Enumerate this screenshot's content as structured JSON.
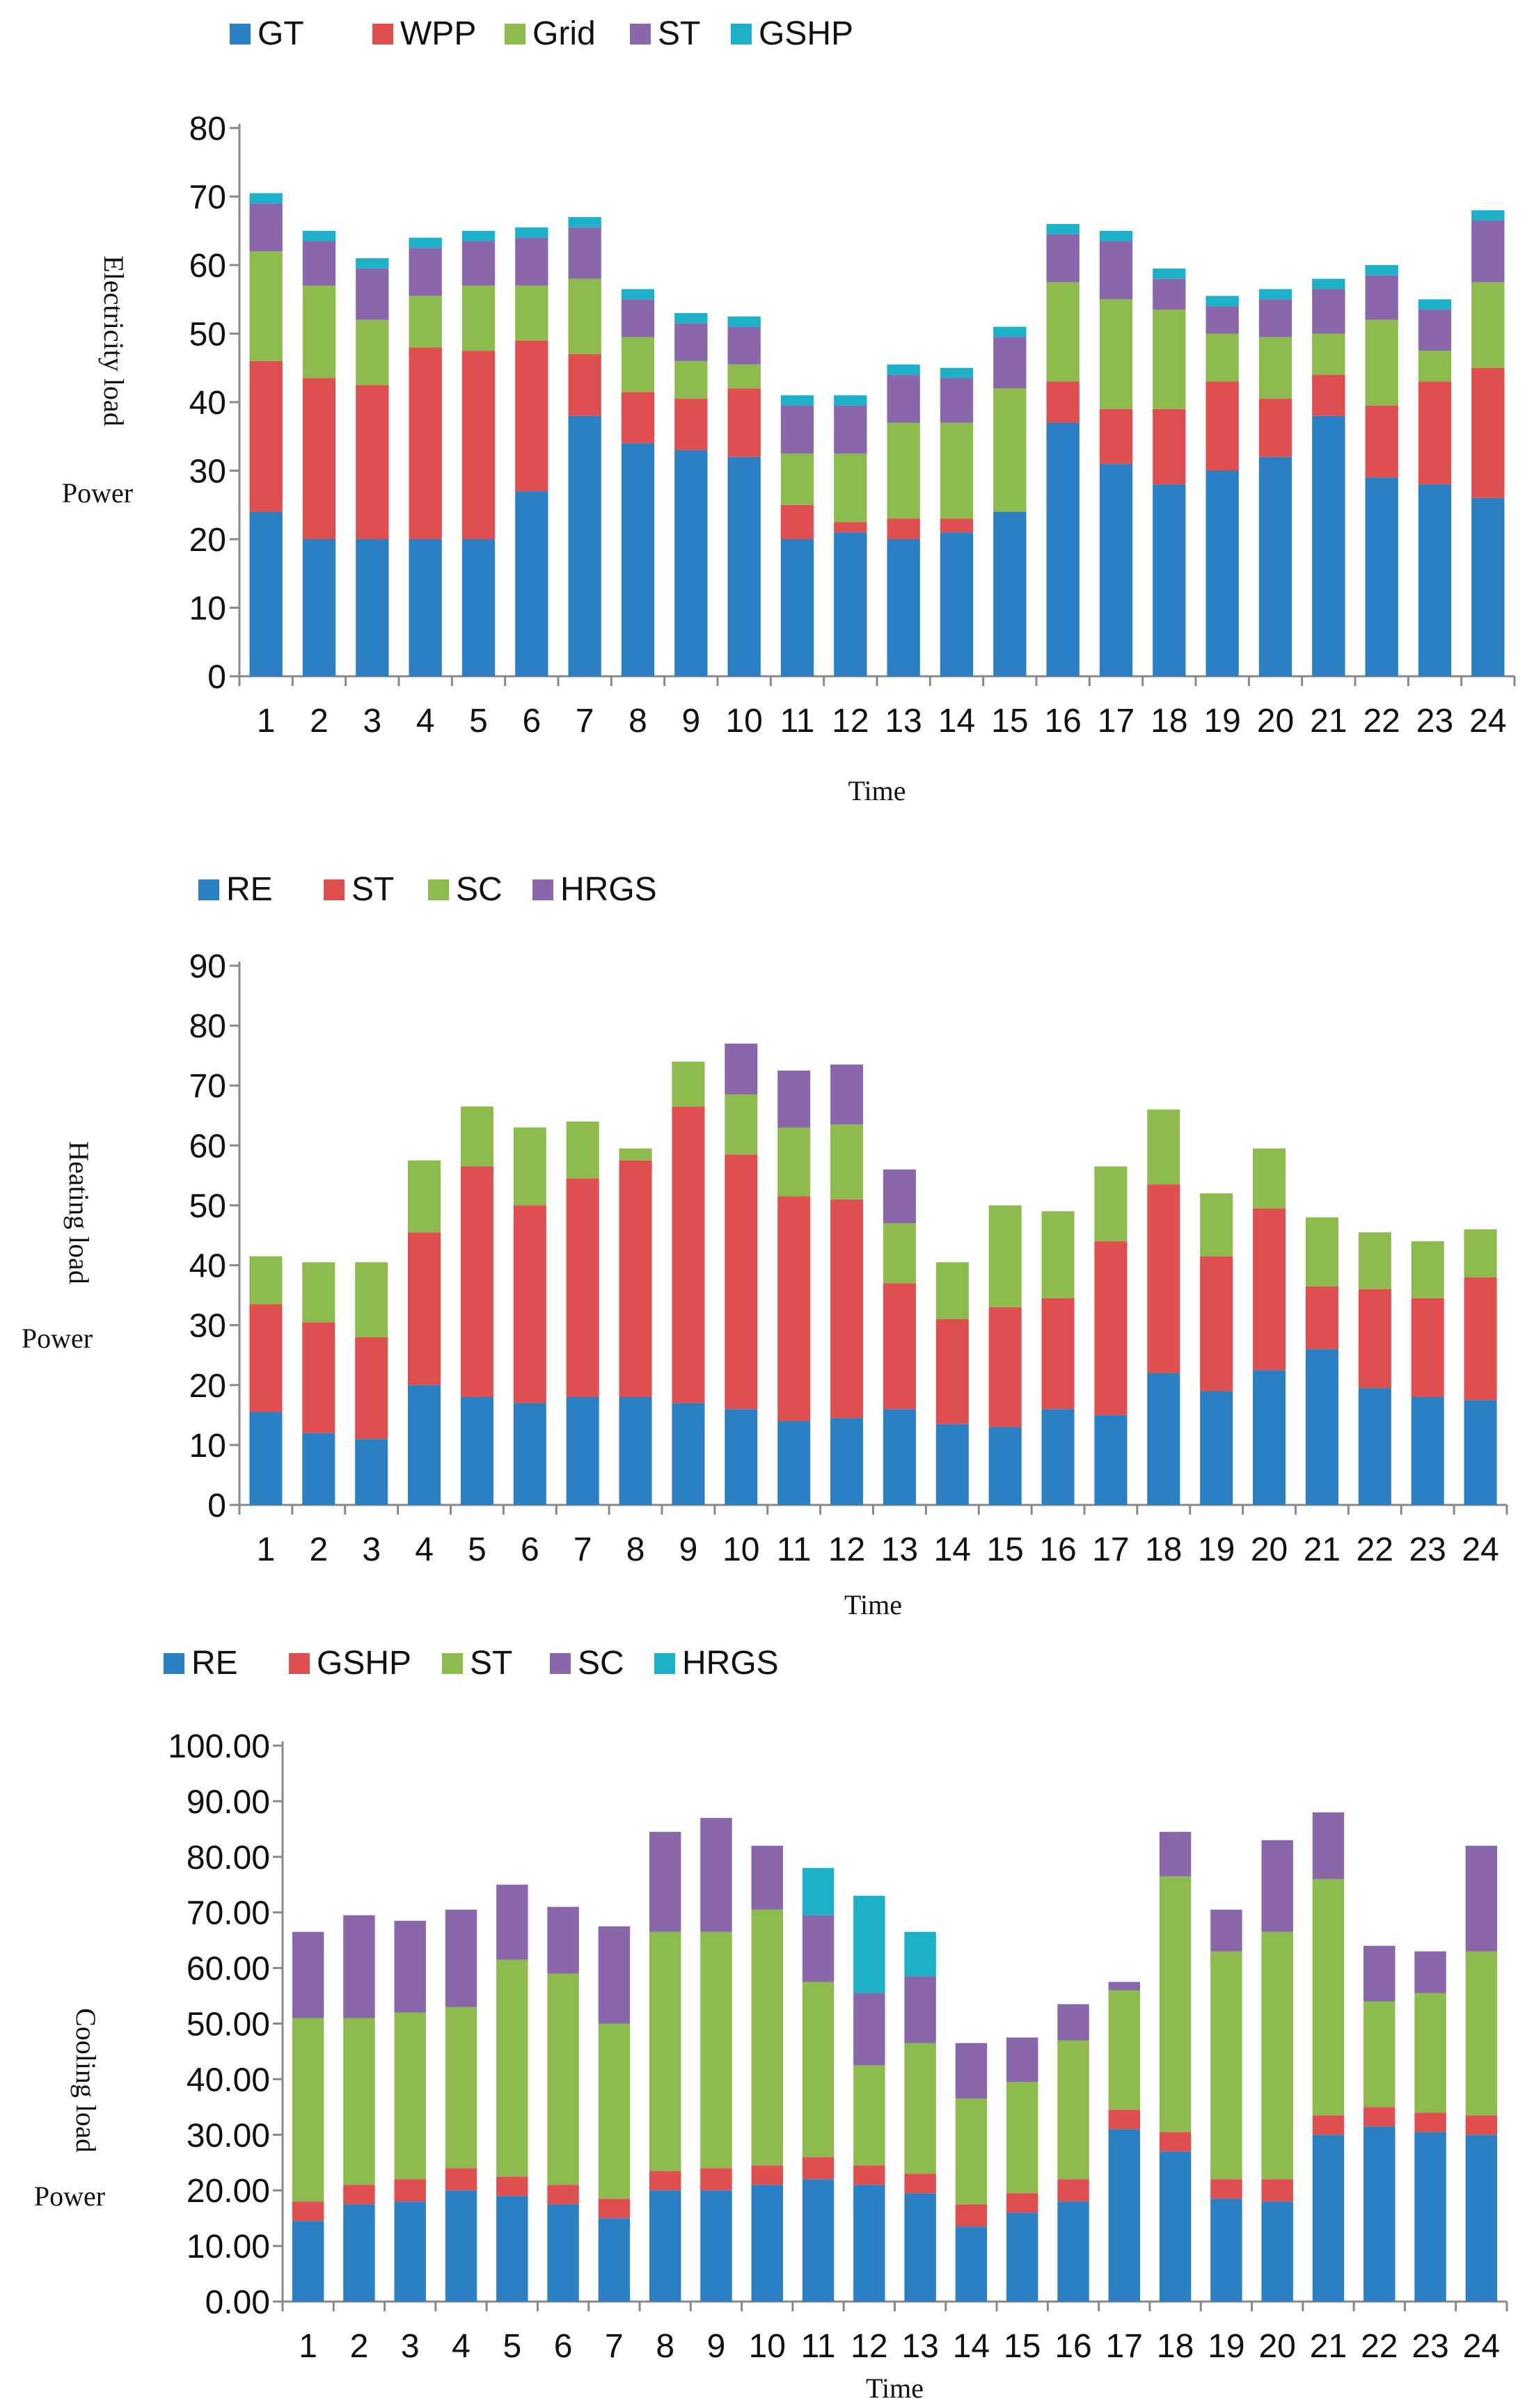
{
  "colors": {
    "blue": "#2a80c2",
    "red": "#e04f4f",
    "green": "#8dbb4e",
    "purple": "#8a67aa",
    "cyan": "#1cb1c9"
  },
  "chart_data": [
    {
      "type": "bar",
      "stacked": true,
      "title": "",
      "ylabel": "Electricity load",
      "ylabel2": "Power",
      "xlabel": "Time",
      "ylim": [
        0,
        80
      ],
      "yticks": [
        "0",
        "10",
        "20",
        "30",
        "40",
        "50",
        "60",
        "70",
        "80"
      ],
      "categories": [
        "1",
        "2",
        "3",
        "4",
        "5",
        "6",
        "7",
        "8",
        "9",
        "10",
        "11",
        "12",
        "13",
        "14",
        "15",
        "16",
        "17",
        "18",
        "19",
        "20",
        "21",
        "22",
        "23",
        "24"
      ],
      "legend_position": "top-left",
      "series": [
        {
          "name": "GT",
          "color": "#2a80c2",
          "values": [
            24,
            20,
            20,
            20,
            20,
            27,
            38,
            34,
            33,
            32,
            20,
            21,
            20,
            21,
            24,
            37,
            31,
            28,
            30,
            32,
            38,
            29,
            28,
            26
          ]
        },
        {
          "name": "WPP",
          "color": "#e04f4f",
          "values": [
            22,
            23.5,
            22.5,
            28,
            27.5,
            22,
            9,
            7.5,
            7.5,
            10,
            5,
            1.5,
            3,
            2,
            0,
            6,
            8,
            11,
            13,
            8.5,
            6,
            10.5,
            15,
            19
          ]
        },
        {
          "name": "Grid",
          "color": "#8dbb4e",
          "values": [
            16,
            13.5,
            9.5,
            7.5,
            9.5,
            8,
            11,
            8,
            5.5,
            3.5,
            7.5,
            10,
            14,
            14,
            18,
            14.5,
            16,
            14.5,
            7,
            9,
            6,
            12.5,
            4.5,
            12.5
          ]
        },
        {
          "name": "ST",
          "color": "#8a67aa",
          "values": [
            7,
            6.5,
            7.5,
            7,
            6.5,
            7,
            7.5,
            5.5,
            5.5,
            5.5,
            7,
            7,
            7,
            6.5,
            7.5,
            7,
            8.5,
            4.5,
            4,
            5.5,
            6.5,
            6.5,
            6,
            9
          ]
        },
        {
          "name": "GSHP",
          "color": "#1cb1c9",
          "values": [
            1.5,
            1.5,
            1.5,
            1.5,
            1.5,
            1.5,
            1.5,
            1.5,
            1.5,
            1.5,
            1.5,
            1.5,
            1.5,
            1.5,
            1.5,
            1.5,
            1.5,
            1.5,
            1.5,
            1.5,
            1.5,
            1.5,
            1.5,
            1.5
          ]
        }
      ]
    },
    {
      "type": "bar",
      "stacked": true,
      "title": "",
      "ylabel": "Heating load",
      "ylabel2": "Power",
      "xlabel": "Time",
      "ylim": [
        0,
        90
      ],
      "yticks": [
        "0",
        "10",
        "20",
        "30",
        "40",
        "50",
        "60",
        "70",
        "80",
        "90"
      ],
      "categories": [
        "1",
        "2",
        "3",
        "4",
        "5",
        "6",
        "7",
        "8",
        "9",
        "10",
        "11",
        "12",
        "13",
        "14",
        "15",
        "16",
        "17",
        "18",
        "19",
        "20",
        "21",
        "22",
        "23",
        "24"
      ],
      "legend_position": "top-left",
      "series": [
        {
          "name": "RE",
          "color": "#2a80c2",
          "values": [
            15.5,
            12,
            11,
            20,
            18,
            17,
            18,
            18,
            17,
            16,
            14,
            14.5,
            16,
            13.5,
            13,
            16,
            15,
            22,
            19,
            22.5,
            26,
            19.5,
            18,
            17.5
          ]
        },
        {
          "name": "ST",
          "color": "#e04f4f",
          "values": [
            18,
            18.5,
            17,
            25.5,
            38.5,
            33,
            36.5,
            39.5,
            49.5,
            42.5,
            37.5,
            36.5,
            21,
            17.5,
            20,
            18.5,
            29,
            31.5,
            22.5,
            27,
            10.5,
            16.5,
            16.5,
            20.5
          ]
        },
        {
          "name": "SC",
          "color": "#8dbb4e",
          "values": [
            8,
            10,
            12.5,
            12,
            10,
            13,
            9.5,
            2,
            7.5,
            10,
            11.5,
            12.5,
            10,
            9.5,
            17,
            14.5,
            12.5,
            12.5,
            10.5,
            10,
            11.5,
            9.5,
            9.5,
            8
          ]
        },
        {
          "name": "HRGS",
          "color": "#8a67aa",
          "values": [
            0,
            0,
            0,
            0,
            0,
            0,
            0,
            0,
            0,
            8.5,
            9.5,
            10,
            9,
            0,
            0,
            0,
            0,
            0,
            0,
            0,
            0,
            0,
            0,
            0
          ]
        }
      ]
    },
    {
      "type": "bar",
      "stacked": true,
      "title": "",
      "ylabel": "Cooling load",
      "ylabel2": "Power",
      "xlabel": "Time",
      "ylim": [
        0,
        100
      ],
      "yticks": [
        "0.00",
        "10.00",
        "20.00",
        "30.00",
        "40.00",
        "50.00",
        "60.00",
        "70.00",
        "80.00",
        "90.00",
        "100.00"
      ],
      "categories": [
        "1",
        "2",
        "3",
        "4",
        "5",
        "6",
        "7",
        "8",
        "9",
        "10",
        "11",
        "12",
        "13",
        "14",
        "15",
        "16",
        "17",
        "18",
        "19",
        "20",
        "21",
        "22",
        "23",
        "24"
      ],
      "legend_position": "top-left",
      "series": [
        {
          "name": "RE",
          "color": "#2a80c2",
          "values": [
            14.5,
            17.5,
            18,
            20,
            19,
            17.5,
            15,
            20,
            20,
            21,
            22,
            21,
            19.5,
            13.5,
            16,
            18,
            31,
            27,
            18.5,
            18,
            30,
            31.5,
            30.5,
            30
          ]
        },
        {
          "name": "GSHP",
          "color": "#e04f4f",
          "values": [
            3.5,
            3.5,
            4,
            4,
            3.5,
            3.5,
            3.5,
            3.5,
            4,
            3.5,
            4,
            3.5,
            3.5,
            4,
            3.5,
            4,
            3.5,
            3.5,
            3.5,
            4,
            3.5,
            3.5,
            3.5,
            3.5
          ]
        },
        {
          "name": "ST",
          "color": "#8dbb4e",
          "values": [
            33,
            30,
            30,
            29,
            39,
            38,
            31.5,
            43,
            42.5,
            46,
            31.5,
            18,
            23.5,
            19,
            20,
            25,
            21.5,
            46,
            41,
            44.5,
            42.5,
            19,
            21.5,
            29.5
          ]
        },
        {
          "name": "SC",
          "color": "#8a67aa",
          "values": [
            15.5,
            18.5,
            16.5,
            17.5,
            13.5,
            12,
            17.5,
            18,
            20.5,
            11.5,
            12,
            13,
            12,
            10,
            8,
            6.5,
            1.5,
            8,
            7.5,
            16.5,
            12,
            10,
            7.5,
            19
          ]
        },
        {
          "name": "HRGS",
          "color": "#1cb1c9",
          "values": [
            0,
            0,
            0,
            0,
            0,
            0,
            0,
            0,
            0,
            0,
            8.5,
            17.5,
            8,
            0,
            0,
            0,
            0,
            0,
            0,
            0,
            0,
            0,
            0,
            0
          ]
        }
      ]
    }
  ]
}
